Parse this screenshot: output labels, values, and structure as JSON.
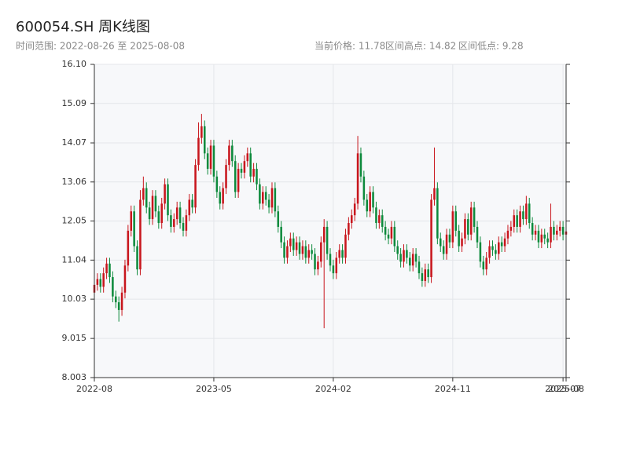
{
  "chart_data": {
    "type": "candlestick",
    "title": "600054.SH 周K线图",
    "subtitle": "时间范围: 2022-08-26 至 2025-08-08",
    "annotations": [
      "当前价格: 11.78",
      "区间高点: 14.82",
      "区间低点: 9.28"
    ],
    "up_color": "#c8161d",
    "down_color": "#0d8a3c",
    "grid": true,
    "ylim": [
      8.003,
      16.1
    ],
    "yticks": [
      8.003,
      9.015,
      10.03,
      11.04,
      12.05,
      13.06,
      14.07,
      15.09,
      {
        "value": 16.1,
        "label": "16.10"
      }
    ],
    "categories": [
      "2022-08",
      null,
      null,
      null,
      null,
      null,
      null,
      null,
      null,
      null,
      null,
      null,
      null,
      null,
      null,
      null,
      null,
      null,
      null,
      null,
      null,
      null,
      null,
      null,
      null,
      null,
      null,
      null,
      null,
      null,
      null,
      null,
      null,
      null,
      null,
      null,
      null,
      null,
      null,
      "2023-05",
      null,
      null,
      null,
      null,
      null,
      null,
      null,
      null,
      null,
      null,
      null,
      null,
      null,
      null,
      null,
      null,
      null,
      null,
      null,
      null,
      null,
      null,
      null,
      null,
      null,
      null,
      null,
      null,
      null,
      null,
      null,
      null,
      null,
      null,
      null,
      null,
      null,
      null,
      "2024-02",
      null,
      null,
      null,
      null,
      null,
      null,
      null,
      null,
      null,
      null,
      null,
      null,
      null,
      null,
      null,
      null,
      null,
      null,
      null,
      null,
      null,
      null,
      null,
      null,
      null,
      null,
      null,
      null,
      null,
      null,
      null,
      null,
      null,
      null,
      null,
      null,
      null,
      null,
      "2024-11",
      null,
      null,
      null,
      null,
      null,
      null,
      null,
      null,
      null,
      null,
      null,
      null,
      null,
      null,
      null,
      null,
      null,
      null,
      null,
      null,
      null,
      null,
      null,
      null,
      null,
      null,
      null,
      null,
      null,
      null,
      null,
      null,
      null,
      null,
      null,
      "2025-07",
      "2025-08"
    ],
    "open": [
      10.2,
      10.4,
      10.55,
      10.35,
      10.7,
      10.95,
      10.6,
      10.1,
      9.95,
      9.75,
      10.2,
      10.9,
      11.8,
      12.3,
      11.4,
      10.8,
      12.6,
      12.9,
      12.4,
      12.1,
      12.7,
      12.3,
      12.0,
      12.5,
      13.0,
      12.2,
      11.9,
      12.1,
      12.4,
      12.0,
      11.8,
      12.2,
      12.6,
      12.4,
      13.5,
      14.2,
      14.5,
      13.8,
      13.4,
      14.0,
      13.2,
      12.8,
      12.5,
      12.9,
      13.5,
      14.0,
      13.6,
      12.8,
      13.4,
      13.3,
      13.6,
      13.8,
      13.2,
      13.4,
      13.0,
      12.5,
      12.8,
      12.6,
      12.4,
      12.9,
      12.3,
      11.9,
      11.5,
      11.1,
      11.4,
      11.6,
      11.3,
      11.5,
      11.2,
      11.4,
      11.1,
      11.3,
      11.2,
      10.8,
      11.0,
      11.5,
      11.9,
      11.2,
      10.9,
      10.7,
      11.1,
      11.3,
      11.1,
      11.7,
      12.0,
      12.2,
      12.5,
      13.8,
      13.2,
      12.6,
      12.3,
      12.8,
      12.4,
      12.0,
      12.2,
      11.9,
      11.7,
      11.6,
      11.9,
      11.4,
      11.2,
      11.0,
      11.3,
      11.1,
      10.9,
      11.2,
      11.0,
      10.7,
      10.5,
      10.8,
      10.6,
      12.6,
      12.9,
      11.6,
      11.4,
      11.2,
      11.7,
      11.5,
      12.3,
      11.8,
      11.4,
      11.6,
      12.1,
      11.7,
      12.4,
      11.9,
      11.5,
      11.0,
      10.8,
      11.1,
      11.4,
      11.3,
      11.2,
      11.5,
      11.4,
      11.6,
      11.8,
      11.9,
      12.2,
      11.9,
      12.3,
      12.1,
      12.5,
      12.0,
      11.7,
      11.8,
      11.5,
      11.7,
      11.6,
      11.5,
      11.9,
      11.7,
      11.8,
      11.9,
      11.7
    ],
    "high": [
      10.55,
      10.7,
      10.7,
      10.85,
      11.1,
      11.1,
      10.75,
      10.25,
      10.1,
      10.35,
      11.05,
      11.95,
      12.45,
      12.45,
      11.55,
      12.85,
      13.2,
      13.05,
      12.55,
      12.85,
      12.85,
      12.45,
      12.65,
      13.15,
      13.15,
      12.35,
      12.25,
      12.55,
      12.55,
      12.15,
      12.35,
      12.75,
      12.75,
      13.65,
      14.6,
      14.82,
      14.65,
      13.95,
      14.15,
      14.15,
      13.35,
      12.95,
      13.05,
      13.65,
      14.15,
      14.15,
      13.75,
      13.55,
      13.55,
      13.75,
      13.95,
      13.95,
      13.55,
      13.55,
      13.15,
      12.95,
      12.95,
      12.75,
      13.05,
      13.05,
      12.45,
      12.05,
      11.65,
      11.55,
      11.75,
      11.75,
      11.65,
      11.65,
      11.55,
      11.55,
      11.45,
      11.45,
      11.35,
      11.15,
      11.65,
      12.1,
      12.05,
      11.35,
      11.05,
      11.25,
      11.45,
      11.45,
      11.85,
      12.15,
      12.35,
      12.65,
      14.25,
      13.95,
      13.35,
      12.75,
      12.95,
      12.95,
      12.55,
      12.35,
      12.35,
      12.05,
      11.85,
      12.05,
      12.05,
      11.55,
      11.35,
      11.45,
      11.45,
      11.25,
      11.35,
      11.35,
      11.15,
      10.85,
      10.95,
      10.95,
      12.75,
      13.95,
      13.05,
      11.75,
      11.55,
      11.85,
      11.85,
      12.45,
      12.45,
      11.95,
      11.75,
      12.25,
      12.25,
      12.55,
      12.55,
      12.05,
      11.65,
      11.15,
      11.25,
      11.55,
      11.55,
      11.45,
      11.65,
      11.65,
      11.75,
      11.95,
      12.05,
      12.35,
      12.35,
      12.45,
      12.45,
      12.7,
      12.65,
      12.15,
      11.95,
      11.95,
      11.85,
      11.85,
      11.75,
      12.5,
      12.05,
      11.95,
      12.05,
      12.05,
      11.93
    ],
    "low": [
      10.05,
      10.25,
      10.2,
      10.2,
      10.55,
      10.45,
      9.95,
      9.8,
      9.45,
      9.6,
      10.05,
      10.75,
      11.65,
      11.25,
      10.65,
      10.65,
      12.45,
      12.25,
      11.95,
      11.95,
      12.15,
      11.85,
      11.85,
      12.35,
      12.05,
      11.75,
      11.75,
      11.95,
      11.85,
      11.65,
      11.65,
      12.05,
      12.25,
      12.25,
      13.35,
      14.05,
      13.65,
      13.25,
      13.25,
      13.05,
      12.65,
      12.35,
      12.35,
      12.75,
      13.35,
      13.45,
      12.65,
      12.65,
      13.15,
      13.15,
      13.45,
      13.05,
      13.05,
      12.85,
      12.35,
      12.35,
      12.45,
      12.25,
      12.25,
      12.15,
      11.75,
      11.35,
      10.95,
      10.95,
      11.25,
      11.15,
      11.15,
      11.05,
      11.05,
      10.95,
      10.95,
      11.05,
      10.65,
      10.65,
      10.85,
      9.28,
      11.05,
      10.75,
      10.55,
      10.55,
      10.95,
      10.95,
      10.95,
      11.55,
      11.85,
      12.05,
      12.35,
      13.05,
      12.45,
      12.15,
      12.15,
      12.25,
      11.85,
      11.85,
      11.75,
      11.55,
      11.45,
      11.45,
      11.25,
      11.05,
      10.85,
      10.85,
      10.95,
      10.75,
      10.75,
      10.85,
      10.55,
      10.35,
      10.35,
      10.45,
      10.45,
      12.45,
      11.45,
      11.25,
      11.05,
      11.05,
      11.35,
      11.35,
      11.65,
      11.25,
      11.25,
      11.45,
      11.55,
      11.55,
      11.75,
      11.35,
      10.85,
      10.65,
      10.65,
      10.95,
      11.15,
      11.05,
      11.05,
      11.25,
      11.25,
      11.45,
      11.65,
      11.75,
      11.75,
      11.75,
      11.95,
      11.95,
      11.85,
      11.55,
      11.55,
      11.35,
      11.35,
      11.45,
      11.35,
      11.35,
      11.55,
      11.55,
      11.65,
      11.55,
      11.55
    ],
    "close": [
      10.4,
      10.55,
      10.35,
      10.7,
      10.95,
      10.6,
      10.1,
      9.95,
      9.75,
      10.2,
      10.9,
      11.8,
      12.3,
      11.4,
      10.8,
      12.6,
      12.9,
      12.4,
      12.1,
      12.7,
      12.3,
      12.0,
      12.5,
      13.0,
      12.2,
      11.9,
      12.1,
      12.4,
      12.0,
      11.8,
      12.2,
      12.6,
      12.4,
      13.5,
      14.2,
      14.5,
      13.8,
      13.4,
      14.0,
      13.2,
      12.8,
      12.5,
      12.9,
      13.5,
      14.0,
      13.6,
      12.8,
      13.4,
      13.3,
      13.6,
      13.8,
      13.2,
      13.4,
      13.0,
      12.5,
      12.8,
      12.6,
      12.4,
      12.9,
      12.3,
      11.9,
      11.5,
      11.1,
      11.4,
      11.6,
      11.3,
      11.5,
      11.2,
      11.4,
      11.1,
      11.3,
      11.2,
      10.8,
      11.0,
      11.5,
      11.9,
      11.2,
      10.9,
      10.7,
      11.1,
      11.3,
      11.1,
      11.7,
      12.0,
      12.2,
      12.5,
      13.8,
      13.2,
      12.6,
      12.3,
      12.8,
      12.4,
      12.0,
      12.2,
      11.9,
      11.7,
      11.6,
      11.9,
      11.4,
      11.2,
      11.0,
      11.3,
      11.1,
      10.9,
      11.2,
      11.0,
      10.7,
      10.5,
      10.8,
      10.6,
      12.6,
      12.9,
      11.6,
      11.4,
      11.2,
      11.7,
      11.5,
      12.3,
      11.8,
      11.4,
      11.6,
      12.1,
      11.7,
      12.4,
      11.9,
      11.5,
      11.0,
      10.8,
      11.1,
      11.4,
      11.3,
      11.2,
      11.5,
      11.4,
      11.6,
      11.8,
      11.9,
      12.2,
      11.9,
      12.3,
      12.1,
      12.5,
      12.0,
      11.7,
      11.8,
      11.5,
      11.7,
      11.6,
      11.5,
      11.9,
      11.7,
      11.8,
      11.9,
      11.7,
      11.78
    ]
  }
}
